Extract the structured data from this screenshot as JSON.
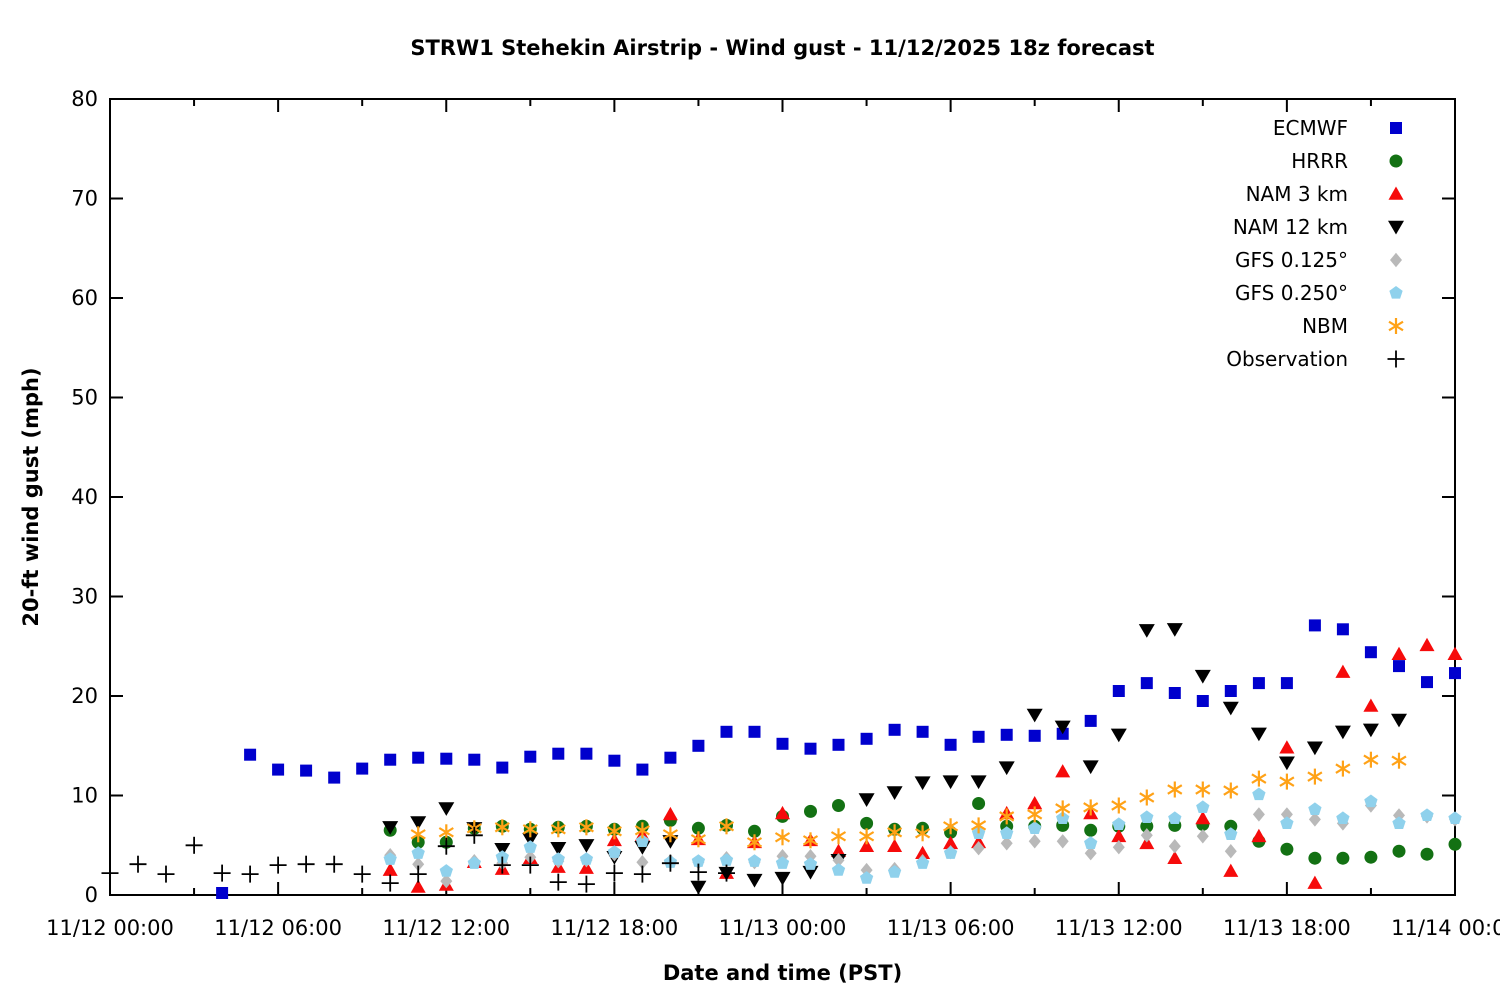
{
  "chart": {
    "title": "STRW1 Stehekin Airstrip - Wind gust - 11/12/2025 18z forecast",
    "xlabel": "Date and time (PST)",
    "ylabel": "20-ft wind gust (mph)"
  },
  "chart_data": {
    "type": "scatter",
    "title": "STRW1 Stehekin Airstrip - Wind gust - 11/12/2025 18z forecast",
    "xlabel": "Date and time (PST)",
    "ylabel": "20-ft wind gust (mph)",
    "x_unit": "hours since 11/12 00:00 PST",
    "xlim": [
      0,
      48
    ],
    "ylim": [
      0,
      80
    ],
    "grid": false,
    "legend_position": "top-right-inside",
    "yticks": [
      0,
      10,
      20,
      30,
      40,
      50,
      60,
      70,
      80
    ],
    "xticks": [
      {
        "h": 0,
        "label": "11/12 00:00"
      },
      {
        "h": 6,
        "label": "11/12 06:00"
      },
      {
        "h": 12,
        "label": "11/12 12:00"
      },
      {
        "h": 18,
        "label": "11/12 18:00"
      },
      {
        "h": 24,
        "label": "11/13 00:00"
      },
      {
        "h": 30,
        "label": "11/13 06:00"
      },
      {
        "h": 36,
        "label": "11/13 12:00"
      },
      {
        "h": 42,
        "label": "11/13 18:00"
      },
      {
        "h": 48,
        "label": "11/14 00:00"
      }
    ],
    "minor_xticks": [
      3,
      9,
      15,
      21,
      27,
      33,
      39,
      45
    ],
    "series": [
      {
        "name": "ECMWF",
        "marker": "square",
        "color": "#0000cd",
        "points": [
          [
            4,
            0.2
          ],
          [
            5,
            14.1
          ],
          [
            6,
            12.6
          ],
          [
            7,
            12.5
          ],
          [
            8,
            11.8
          ],
          [
            9,
            12.7
          ],
          [
            10,
            13.6
          ],
          [
            11,
            13.8
          ],
          [
            12,
            13.7
          ],
          [
            13,
            13.6
          ],
          [
            14,
            12.8
          ],
          [
            15,
            13.9
          ],
          [
            16,
            14.2
          ],
          [
            17,
            14.2
          ],
          [
            18,
            13.5
          ],
          [
            19,
            12.6
          ],
          [
            20,
            13.8
          ],
          [
            21,
            15.0
          ],
          [
            22,
            16.4
          ],
          [
            23,
            16.4
          ],
          [
            24,
            15.2
          ],
          [
            25,
            14.7
          ],
          [
            26,
            15.1
          ],
          [
            27,
            15.7
          ],
          [
            28,
            16.6
          ],
          [
            29,
            16.4
          ],
          [
            30,
            15.1
          ],
          [
            31,
            15.9
          ],
          [
            32,
            16.1
          ],
          [
            33,
            16.0
          ],
          [
            34,
            16.2
          ],
          [
            35,
            17.5
          ],
          [
            36,
            20.5
          ],
          [
            37,
            21.3
          ],
          [
            38,
            20.3
          ],
          [
            39,
            19.5
          ],
          [
            40,
            20.5
          ],
          [
            41,
            21.3
          ],
          [
            42,
            21.3
          ],
          [
            43,
            27.1
          ],
          [
            44,
            26.7
          ],
          [
            45,
            24.4
          ],
          [
            46,
            23.0
          ],
          [
            47,
            21.4
          ],
          [
            48,
            22.3
          ]
        ]
      },
      {
        "name": "HRRR",
        "marker": "circle",
        "color": "#137113",
        "points": [
          [
            10,
            6.5
          ],
          [
            11,
            5.3
          ],
          [
            12,
            5.3
          ],
          [
            13,
            6.7
          ],
          [
            14,
            6.9
          ],
          [
            15,
            6.6
          ],
          [
            16,
            6.8
          ],
          [
            17,
            6.9
          ],
          [
            18,
            6.6
          ],
          [
            19,
            6.9
          ],
          [
            20,
            7.5
          ],
          [
            21,
            6.7
          ],
          [
            22,
            7.0
          ],
          [
            23,
            6.4
          ],
          [
            24,
            7.9
          ],
          [
            25,
            8.4
          ],
          [
            26,
            9.0
          ],
          [
            27,
            7.2
          ],
          [
            28,
            6.6
          ],
          [
            29,
            6.7
          ],
          [
            30,
            6.3
          ],
          [
            31,
            9.2
          ],
          [
            32,
            6.9
          ],
          [
            33,
            6.9
          ],
          [
            34,
            7.0
          ],
          [
            35,
            6.5
          ],
          [
            36,
            6.9
          ],
          [
            37,
            6.9
          ],
          [
            38,
            7.0
          ],
          [
            39,
            7.1
          ],
          [
            40,
            6.9
          ],
          [
            41,
            5.4
          ],
          [
            42,
            4.6
          ],
          [
            43,
            3.7
          ],
          [
            44,
            3.7
          ],
          [
            45,
            3.8
          ],
          [
            46,
            4.4
          ],
          [
            47,
            4.1
          ],
          [
            48,
            5.1
          ]
        ]
      },
      {
        "name": "NAM 3 km",
        "marker": "triangle-up",
        "color": "#f60b0b",
        "points": [
          [
            10,
            2.5
          ],
          [
            11,
            0.8
          ],
          [
            12,
            1.0
          ],
          [
            13,
            3.3
          ],
          [
            14,
            2.6
          ],
          [
            15,
            3.7
          ],
          [
            16,
            2.8
          ],
          [
            17,
            2.7
          ],
          [
            18,
            5.5
          ],
          [
            19,
            6.0
          ],
          [
            20,
            8.1
          ],
          [
            21,
            5.6
          ],
          [
            22,
            2.2
          ],
          [
            23,
            5.3
          ],
          [
            24,
            8.2
          ],
          [
            25,
            5.5
          ],
          [
            26,
            4.4
          ],
          [
            27,
            4.9
          ],
          [
            28,
            4.9
          ],
          [
            29,
            4.2
          ],
          [
            30,
            5.2
          ],
          [
            31,
            5.3
          ],
          [
            32,
            8.2
          ],
          [
            33,
            9.2
          ],
          [
            34,
            12.4
          ],
          [
            35,
            8.2
          ],
          [
            36,
            5.9
          ],
          [
            37,
            5.2
          ],
          [
            38,
            3.7
          ],
          [
            39,
            7.7
          ],
          [
            40,
            2.4
          ],
          [
            41,
            5.9
          ],
          [
            42,
            14.8
          ],
          [
            43,
            1.2
          ],
          [
            44,
            22.4
          ],
          [
            45,
            19.0
          ],
          [
            46,
            24.2
          ],
          [
            47,
            25.1
          ],
          [
            48,
            24.2
          ]
        ]
      },
      {
        "name": "NAM 12 km",
        "marker": "triangle-down",
        "color": "#000000",
        "points": [
          [
            10,
            6.8
          ],
          [
            11,
            7.3
          ],
          [
            12,
            8.7
          ],
          [
            13,
            6.7
          ],
          [
            14,
            4.6
          ],
          [
            15,
            5.6
          ],
          [
            16,
            4.7
          ],
          [
            17,
            5.0
          ],
          [
            18,
            3.8
          ],
          [
            19,
            4.8
          ],
          [
            20,
            5.4
          ],
          [
            21,
            0.8
          ],
          [
            22,
            2.2
          ],
          [
            23,
            1.5
          ],
          [
            24,
            1.7
          ],
          [
            25,
            2.3
          ],
          [
            26,
            3.5
          ],
          [
            27,
            9.6
          ],
          [
            28,
            10.3
          ],
          [
            29,
            11.3
          ],
          [
            30,
            11.4
          ],
          [
            31,
            11.4
          ],
          [
            32,
            12.8
          ],
          [
            33,
            18.1
          ],
          [
            34,
            16.9
          ],
          [
            35,
            12.9
          ],
          [
            36,
            16.1
          ],
          [
            37,
            26.6
          ],
          [
            38,
            26.7
          ],
          [
            39,
            22.0
          ],
          [
            40,
            18.8
          ],
          [
            41,
            16.2
          ],
          [
            42,
            13.3
          ],
          [
            43,
            14.8
          ],
          [
            44,
            16.4
          ],
          [
            45,
            16.6
          ],
          [
            46,
            17.6
          ]
        ]
      },
      {
        "name": "GFS 0.125°",
        "marker": "diamond",
        "color": "#b9b9b9",
        "points": [
          [
            10,
            4.0
          ],
          [
            11,
            3.1
          ],
          [
            12,
            1.4
          ],
          [
            13,
            3.4
          ],
          [
            14,
            3.2
          ],
          [
            15,
            3.8
          ],
          [
            16,
            3.4
          ],
          [
            17,
            3.5
          ],
          [
            18,
            4.1
          ],
          [
            19,
            3.3
          ],
          [
            20,
            3.4
          ],
          [
            21,
            3.3
          ],
          [
            22,
            3.7
          ],
          [
            23,
            3.3
          ],
          [
            24,
            3.9
          ],
          [
            25,
            3.9
          ],
          [
            26,
            3.5
          ],
          [
            27,
            2.5
          ],
          [
            28,
            2.6
          ],
          [
            29,
            3.4
          ],
          [
            30,
            4.3
          ],
          [
            31,
            4.7
          ],
          [
            32,
            5.2
          ],
          [
            33,
            5.4
          ],
          [
            34,
            5.4
          ],
          [
            35,
            4.2
          ],
          [
            36,
            4.8
          ],
          [
            37,
            6.0
          ],
          [
            38,
            4.9
          ],
          [
            39,
            5.9
          ],
          [
            40,
            4.4
          ],
          [
            41,
            8.1
          ],
          [
            42,
            8.1
          ],
          [
            43,
            7.6
          ],
          [
            44,
            7.2
          ],
          [
            45,
            9.0
          ],
          [
            46,
            8.0
          ],
          [
            47,
            7.9
          ],
          [
            48,
            7.6
          ]
        ]
      },
      {
        "name": "GFS 0.250°",
        "marker": "pentagon",
        "color": "#8fd1ec",
        "points": [
          [
            10,
            3.6
          ],
          [
            11,
            4.2
          ],
          [
            12,
            2.4
          ],
          [
            13,
            3.2
          ],
          [
            14,
            3.8
          ],
          [
            15,
            4.8
          ],
          [
            16,
            3.6
          ],
          [
            17,
            3.6
          ],
          [
            18,
            4.3
          ],
          [
            19,
            5.4
          ],
          [
            20,
            3.3
          ],
          [
            21,
            3.4
          ],
          [
            22,
            3.5
          ],
          [
            23,
            3.4
          ],
          [
            24,
            3.2
          ],
          [
            25,
            3.1
          ],
          [
            26,
            2.5
          ],
          [
            27,
            1.7
          ],
          [
            28,
            2.3
          ],
          [
            29,
            3.2
          ],
          [
            30,
            4.2
          ],
          [
            31,
            6.2
          ],
          [
            32,
            6.2
          ],
          [
            33,
            6.7
          ],
          [
            34,
            7.7
          ],
          [
            35,
            5.2
          ],
          [
            36,
            7.1
          ],
          [
            37,
            7.8
          ],
          [
            38,
            7.7
          ],
          [
            39,
            8.8
          ],
          [
            40,
            6.1
          ],
          [
            41,
            10.1
          ],
          [
            42,
            7.2
          ],
          [
            43,
            8.6
          ],
          [
            44,
            7.7
          ],
          [
            45,
            9.4
          ],
          [
            46,
            7.2
          ],
          [
            47,
            8.0
          ],
          [
            48,
            7.7
          ]
        ]
      },
      {
        "name": "NBM",
        "marker": "asterisk",
        "color": "#ffa217",
        "points": [
          [
            11,
            6.1
          ],
          [
            12,
            6.3
          ],
          [
            13,
            6.7
          ],
          [
            14,
            6.8
          ],
          [
            15,
            6.6
          ],
          [
            16,
            6.6
          ],
          [
            17,
            6.8
          ],
          [
            18,
            6.4
          ],
          [
            19,
            6.5
          ],
          [
            20,
            6.1
          ],
          [
            21,
            5.6
          ],
          [
            22,
            6.9
          ],
          [
            23,
            5.3
          ],
          [
            24,
            5.8
          ],
          [
            25,
            5.5
          ],
          [
            26,
            5.9
          ],
          [
            27,
            5.9
          ],
          [
            28,
            6.3
          ],
          [
            29,
            6.2
          ],
          [
            30,
            6.9
          ],
          [
            31,
            7.0
          ],
          [
            32,
            7.9
          ],
          [
            33,
            8.1
          ],
          [
            34,
            8.7
          ],
          [
            35,
            8.8
          ],
          [
            36,
            9.0
          ],
          [
            37,
            9.8
          ],
          [
            38,
            10.6
          ],
          [
            39,
            10.6
          ],
          [
            40,
            10.5
          ],
          [
            41,
            11.7
          ],
          [
            42,
            11.4
          ],
          [
            43,
            11.9
          ],
          [
            44,
            12.7
          ],
          [
            45,
            13.6
          ],
          [
            46,
            13.5
          ]
        ]
      },
      {
        "name": "Observation",
        "marker": "plus",
        "color": "#000000",
        "points": [
          [
            0,
            2.2
          ],
          [
            1,
            3.1
          ],
          [
            2,
            2.1
          ],
          [
            3,
            5.0
          ],
          [
            4,
            2.2
          ],
          [
            5,
            2.1
          ],
          [
            6,
            3.0
          ],
          [
            7,
            3.1
          ],
          [
            8,
            3.1
          ],
          [
            9,
            2.1
          ],
          [
            10,
            1.2
          ],
          [
            11,
            2.1
          ],
          [
            12,
            4.9
          ],
          [
            13,
            6.0
          ],
          [
            14,
            3.0
          ],
          [
            15,
            3.0
          ],
          [
            16,
            1.3
          ],
          [
            17,
            1.1
          ],
          [
            18,
            2.2
          ],
          [
            19,
            2.1
          ],
          [
            20,
            3.2
          ],
          [
            21,
            2.3
          ],
          [
            22,
            2.2
          ]
        ]
      }
    ]
  }
}
